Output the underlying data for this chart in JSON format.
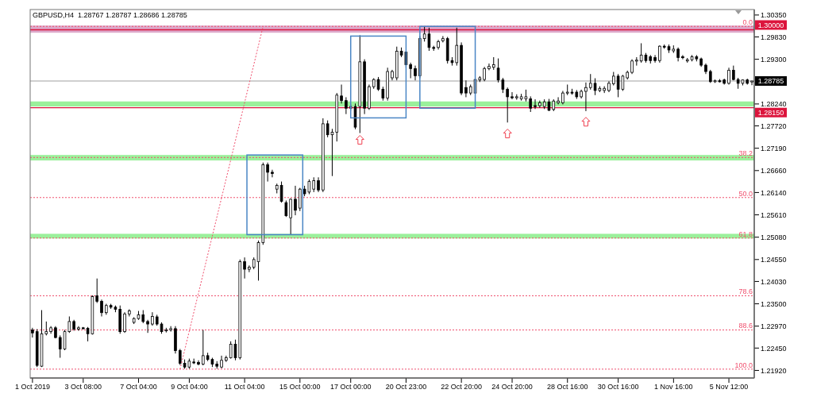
{
  "chart_data": {
    "type": "candlestick",
    "title": "GBPUSD,H4  1.28767 1.28787 1.28686 1.28785",
    "color": "#000000",
    "categories": [
      "1 Oct 2019",
      null,
      null,
      null,
      null,
      null,
      null,
      null,
      null,
      null,
      null,
      "3 Oct 08:00",
      null,
      null,
      null,
      null,
      null,
      null,
      null,
      null,
      null,
      null,
      null,
      "7 Oct 04:00",
      null,
      null,
      null,
      null,
      null,
      null,
      null,
      null,
      null,
      null,
      "9 Oct 04:00",
      null,
      null,
      null,
      null,
      null,
      null,
      null,
      null,
      null,
      null,
      null,
      "11 Oct 04:00",
      null,
      null,
      null,
      null,
      null,
      null,
      null,
      null,
      null,
      null,
      null,
      "15 Oct 00:00",
      null,
      null,
      null,
      null,
      null,
      null,
      null,
      null,
      null,
      null,
      "17 Oct 00:00",
      null,
      null,
      null,
      null,
      null,
      null,
      null,
      null,
      null,
      null,
      null,
      "20 Oct 23:00",
      null,
      null,
      null,
      null,
      null,
      null,
      null,
      null,
      null,
      null,
      null,
      "22 Oct 20:00",
      null,
      null,
      null,
      null,
      null,
      null,
      null,
      null,
      null,
      null,
      "24 Oct 20:00",
      null,
      null,
      null,
      null,
      null,
      null,
      null,
      null,
      null,
      null,
      null,
      "28 Oct 16:00",
      null,
      null,
      null,
      null,
      null,
      null,
      null,
      null,
      null,
      null,
      "30 Oct 16:00",
      null,
      null,
      null,
      null,
      null,
      null,
      null,
      null,
      null,
      null,
      null,
      "1 Nov 16:00",
      null,
      null,
      null,
      null,
      null,
      null,
      null,
      null,
      null,
      null,
      null,
      "5 Nov 12:00",
      null,
      null,
      null,
      null,
      null
    ],
    "ohlc": [
      [
        1.2288,
        1.2293,
        1.227,
        1.2281
      ],
      [
        1.2284,
        1.229,
        1.22,
        1.2204
      ],
      [
        1.2202,
        1.2335,
        1.22,
        1.2279
      ],
      [
        1.2279,
        1.2308,
        1.2275,
        1.2284
      ],
      [
        1.2284,
        1.2297,
        1.2279,
        1.2293
      ],
      [
        1.2293,
        1.2297,
        1.2268,
        1.227
      ],
      [
        1.227,
        1.2275,
        1.2222,
        1.2243
      ],
      [
        1.2243,
        1.2288,
        1.224,
        1.2284
      ],
      [
        1.2284,
        1.232,
        1.2281,
        1.2308
      ],
      [
        1.2308,
        1.2312,
        1.2286,
        1.229
      ],
      [
        1.229,
        1.2297,
        1.2286,
        1.2293
      ],
      [
        1.2293,
        1.2295,
        1.229,
        1.2292
      ],
      [
        1.2292,
        1.2295,
        1.2261,
        1.2279
      ],
      [
        1.2279,
        1.237,
        1.2277,
        1.2367
      ],
      [
        1.2369,
        1.241,
        1.2352,
        1.2356
      ],
      [
        1.2356,
        1.236,
        1.232,
        1.2329
      ],
      [
        1.2329,
        1.235,
        1.2324,
        1.2346
      ],
      [
        1.2346,
        1.235,
        1.2338,
        1.2342
      ],
      [
        1.2342,
        1.2346,
        1.233,
        1.2337
      ],
      [
        1.2337,
        1.2346,
        1.2279,
        1.2284
      ],
      [
        1.2284,
        1.233,
        1.2281,
        1.2326
      ],
      [
        1.2326,
        1.2337,
        1.232,
        1.2333
      ],
      [
        1.2306,
        1.2318,
        1.2302,
        1.2315
      ],
      [
        1.2315,
        1.2333,
        1.2312,
        1.2324
      ],
      [
        1.2324,
        1.2335,
        1.2304,
        1.2308
      ],
      [
        1.2308,
        1.2312,
        1.2281,
        1.2302
      ],
      [
        1.2302,
        1.233,
        1.2298,
        1.232
      ],
      [
        1.2319,
        1.2324,
        1.2298,
        1.2302
      ],
      [
        1.2302,
        1.2306,
        1.2279,
        1.2284
      ],
      [
        1.2286,
        1.2293,
        1.2282,
        1.2288
      ],
      [
        1.2288,
        1.2297,
        1.2284,
        1.2291
      ],
      [
        1.2291,
        1.2297,
        1.2232,
        1.2239
      ],
      [
        1.2239,
        1.2243,
        1.2205,
        1.2209
      ],
      [
        1.2209,
        1.2218,
        1.2196,
        1.22
      ],
      [
        1.22,
        1.222,
        1.2196,
        1.2214
      ],
      [
        1.2212,
        1.222,
        1.2207,
        1.2211
      ],
      [
        1.2211,
        1.2216,
        1.2204,
        1.2207
      ],
      [
        1.2207,
        1.2288,
        1.2204,
        1.2227
      ],
      [
        1.2227,
        1.2234,
        1.2214,
        1.2218
      ],
      [
        1.2218,
        1.2222,
        1.22,
        1.2207
      ],
      [
        1.2207,
        1.2214,
        1.2196,
        1.2202
      ],
      [
        1.22,
        1.2227,
        1.2197,
        1.2216
      ],
      [
        1.2216,
        1.2227,
        1.2212,
        1.2222
      ],
      [
        1.2222,
        1.2261,
        1.222,
        1.2254
      ],
      [
        1.2254,
        1.2265,
        1.2216,
        1.2222
      ],
      [
        1.2222,
        1.2455,
        1.2218,
        1.245
      ],
      [
        1.245,
        1.246,
        1.241,
        1.2432
      ],
      [
        1.2432,
        1.2441,
        1.2425,
        1.2437
      ],
      [
        1.2437,
        1.246,
        1.2432,
        1.2455
      ],
      [
        1.245,
        1.25,
        1.2405,
        1.2495
      ],
      [
        1.2495,
        1.2685,
        1.249,
        1.268
      ],
      [
        1.268,
        1.2685,
        1.264,
        1.2662
      ],
      [
        1.2662,
        1.2668,
        1.265,
        1.2659
      ],
      [
        1.2622,
        1.2635,
        1.2612,
        1.2631
      ],
      [
        1.2631,
        1.264,
        1.259,
        1.2593
      ],
      [
        1.259,
        1.2595,
        1.2556,
        1.2559
      ],
      [
        1.2554,
        1.26,
        1.2515,
        1.2598
      ],
      [
        1.2598,
        1.263,
        1.256,
        1.2572
      ],
      [
        1.2577,
        1.2625,
        1.257,
        1.2622
      ],
      [
        1.2622,
        1.263,
        1.2605,
        1.2611
      ],
      [
        1.2615,
        1.2645,
        1.261,
        1.264
      ],
      [
        1.2622,
        1.265,
        1.2615,
        1.2642
      ],
      [
        1.2642,
        1.265,
        1.2615,
        1.262
      ],
      [
        1.262,
        1.279,
        1.2615,
        1.2777
      ],
      [
        1.2777,
        1.2785,
        1.2745,
        1.2751
      ],
      [
        1.2751,
        1.2765,
        1.2653,
        1.2757
      ],
      [
        1.2757,
        1.285,
        1.2735,
        1.2845
      ],
      [
        1.2843,
        1.287,
        1.2825,
        1.2832
      ],
      [
        1.2832,
        1.284,
        1.28,
        1.2814
      ],
      [
        1.2814,
        1.2823,
        1.2808,
        1.2818
      ],
      [
        1.2818,
        1.2825,
        1.2764,
        1.2769
      ],
      [
        1.2818,
        1.2987,
        1.2755,
        1.2924
      ],
      [
        1.2924,
        1.293,
        1.28,
        1.2814
      ],
      [
        1.2814,
        1.287,
        1.281,
        1.2865
      ],
      [
        1.2865,
        1.2885,
        1.286,
        1.2882
      ],
      [
        1.2882,
        1.2888,
        1.2855,
        1.2859
      ],
      [
        1.2859,
        1.2865,
        1.2832,
        1.2838
      ],
      [
        1.2838,
        1.291,
        1.2832,
        1.2901
      ],
      [
        1.2886,
        1.2905,
        1.288,
        1.2901
      ],
      [
        1.2886,
        1.296,
        1.288,
        1.2949
      ],
      [
        1.2949,
        1.2958,
        1.2935,
        1.294
      ],
      [
        1.2947,
        1.295,
        1.291,
        1.2917
      ],
      [
        1.2917,
        1.2922,
        1.2885,
        1.2908
      ],
      [
        1.2908,
        1.2915,
        1.288,
        1.2891
      ],
      [
        1.2891,
        1.2985,
        1.2885,
        1.2979
      ],
      [
        1.2979,
        1.3008,
        1.2972,
        1.299
      ],
      [
        1.299,
        1.3005,
        1.295,
        1.2958
      ],
      [
        1.2958,
        1.2962,
        1.295,
        1.2956
      ],
      [
        1.2958,
        1.2976,
        1.2953,
        1.2972
      ],
      [
        1.2974,
        1.2985,
        1.297,
        1.2979
      ],
      [
        1.2979,
        1.2983,
        1.292,
        1.2927
      ],
      [
        1.2927,
        1.2935,
        1.2915,
        1.2922
      ],
      [
        1.2922,
        1.3005,
        1.2915,
        1.2963
      ],
      [
        1.2963,
        1.297,
        1.2845,
        1.285
      ],
      [
        1.2863,
        1.288,
        1.284,
        1.285
      ],
      [
        1.285,
        1.287,
        1.2845,
        1.2865
      ],
      [
        1.285,
        1.2888,
        1.2845,
        1.2882
      ],
      [
        1.2881,
        1.289,
        1.2876,
        1.2886
      ],
      [
        1.2882,
        1.2912,
        1.2878,
        1.2908
      ],
      [
        1.2908,
        1.292,
        1.2904,
        1.2913
      ],
      [
        1.2911,
        1.2935,
        1.2905,
        1.2917
      ],
      [
        1.2909,
        1.2932,
        1.2875,
        1.2881
      ],
      [
        1.2881,
        1.2886,
        1.285,
        1.2859
      ],
      [
        1.2859,
        1.2863,
        1.278,
        1.2841
      ],
      [
        1.2841,
        1.2852,
        1.2835,
        1.2839
      ],
      [
        1.2839,
        1.2847,
        1.2834,
        1.2841
      ],
      [
        1.2836,
        1.2848,
        1.2832,
        1.2841
      ],
      [
        1.2836,
        1.2858,
        1.283,
        1.2841
      ],
      [
        1.2836,
        1.2842,
        1.2805,
        1.2814
      ],
      [
        1.282,
        1.2835,
        1.2812,
        1.2818
      ],
      [
        1.282,
        1.2832,
        1.2815,
        1.2827
      ],
      [
        1.2818,
        1.2835,
        1.2812,
        1.2829
      ],
      [
        1.2829,
        1.2836,
        1.2807,
        1.2809
      ],
      [
        1.2811,
        1.2835,
        1.2807,
        1.2831
      ],
      [
        1.2827,
        1.284,
        1.2823,
        1.2831
      ],
      [
        1.2827,
        1.2855,
        1.2823,
        1.285
      ],
      [
        1.285,
        1.287,
        1.2845,
        1.2852
      ],
      [
        1.2852,
        1.286,
        1.2846,
        1.2851
      ],
      [
        1.2852,
        1.2857,
        1.2836,
        1.2841
      ],
      [
        1.2841,
        1.2858,
        1.2837,
        1.2854
      ],
      [
        1.2854,
        1.2875,
        1.2807,
        1.2863
      ],
      [
        1.2863,
        1.2895,
        1.2858,
        1.2873
      ],
      [
        1.2873,
        1.2885,
        1.2845,
        1.2856
      ],
      [
        1.2856,
        1.2866,
        1.2852,
        1.2861
      ],
      [
        1.2856,
        1.2866,
        1.285,
        1.2861
      ],
      [
        1.2856,
        1.2878,
        1.2852,
        1.2873
      ],
      [
        1.2872,
        1.29,
        1.2868,
        1.289
      ],
      [
        1.289,
        1.2895,
        1.284,
        1.2859
      ],
      [
        1.2859,
        1.2893,
        1.2855,
        1.289
      ],
      [
        1.2886,
        1.2903,
        1.2882,
        1.2899
      ],
      [
        1.2899,
        1.293,
        1.2895,
        1.2926
      ],
      [
        1.2926,
        1.2935,
        1.2915,
        1.2928
      ],
      [
        1.2926,
        1.2968,
        1.2922,
        1.294
      ],
      [
        1.294,
        1.2945,
        1.2922,
        1.2927
      ],
      [
        1.2936,
        1.294,
        1.292,
        1.2927
      ],
      [
        1.2934,
        1.294,
        1.2922,
        1.2927
      ],
      [
        1.2927,
        1.2963,
        1.2922,
        1.2961
      ],
      [
        1.2961,
        1.2965,
        1.2955,
        1.296
      ],
      [
        1.296,
        1.2965,
        1.2945,
        1.2952
      ],
      [
        1.295,
        1.2963,
        1.2945,
        1.2954
      ],
      [
        1.2954,
        1.2958,
        1.2925,
        1.2934
      ],
      [
        1.2936,
        1.294,
        1.293,
        1.2934
      ],
      [
        1.2926,
        1.2933,
        1.2922,
        1.2929
      ],
      [
        1.2929,
        1.294,
        1.2925,
        1.2936
      ],
      [
        1.2936,
        1.294,
        1.2925,
        1.2931
      ],
      [
        1.2931,
        1.2934,
        1.2912,
        1.2916
      ],
      [
        1.2916,
        1.292,
        1.2895,
        1.2901
      ],
      [
        1.2901,
        1.2905,
        1.2874,
        1.2877
      ],
      [
        1.2877,
        1.2882,
        1.2874,
        1.2879
      ],
      [
        1.2879,
        1.2883,
        1.2875,
        1.2878
      ],
      [
        1.2881,
        1.2884,
        1.287,
        1.2873
      ],
      [
        1.2873,
        1.291,
        1.287,
        1.2904
      ],
      [
        1.2904,
        1.2915,
        1.288,
        1.2882
      ],
      [
        1.2882,
        1.2886,
        1.286,
        1.2873
      ],
      [
        1.2873,
        1.2882,
        1.2868,
        1.2881
      ],
      [
        1.2881,
        1.2884,
        1.287,
        1.2873
      ],
      [
        1.28767,
        1.28787,
        1.28686,
        1.28785
      ]
    ],
    "ylim": [
      1.2174,
      1.3048
    ],
    "yticks": [
      {
        "value": 1.3035,
        "label": "1.30350"
      },
      {
        "value": 1.2983,
        "label": "1.29830"
      },
      {
        "value": 1.293,
        "label": "1.29300"
      },
      {
        "value": 1.2824,
        "label": "1.28240"
      },
      {
        "value": 1.2772,
        "label": "1.27720"
      },
      {
        "value": 1.2719,
        "label": "1.27190"
      },
      {
        "value": 1.2666,
        "label": "1.26660"
      },
      {
        "value": 1.2614,
        "label": "1.26140"
      },
      {
        "value": 1.2561,
        "label": "1.25610"
      },
      {
        "value": 1.2508,
        "label": "1.25080"
      },
      {
        "value": 1.2455,
        "label": "1.24550"
      },
      {
        "value": 1.2403,
        "label": "1.24030"
      },
      {
        "value": 1.235,
        "label": "1.23500"
      },
      {
        "value": 1.2297,
        "label": "1.22970"
      },
      {
        "value": 1.2245,
        "label": "1.22450"
      },
      {
        "value": 1.2192,
        "label": "1.21920"
      }
    ],
    "series": [
      {
        "type": "line",
        "color": "#f0506e",
        "line_style": "dotted",
        "values": [
          null,
          null,
          null,
          null,
          null,
          null,
          null,
          null,
          null,
          null,
          null,
          null,
          null,
          null,
          null,
          null,
          null,
          null,
          null,
          null,
          null,
          null,
          null,
          null,
          null,
          null,
          null,
          null,
          null,
          null,
          null,
          null,
          1.2195,
          null,
          null,
          null,
          null,
          null,
          null,
          null,
          null,
          null,
          null,
          null,
          null,
          null,
          null,
          null,
          null,
          null,
          1.3008,
          null,
          null,
          null,
          null,
          null,
          null,
          null,
          null,
          null,
          null,
          null,
          null,
          null,
          null,
          null,
          null,
          null,
          null,
          null,
          null,
          null,
          null,
          null,
          null,
          null,
          null,
          null,
          null,
          null,
          null,
          null,
          null,
          null,
          null,
          null,
          null,
          null,
          null,
          null,
          null,
          null,
          null,
          null,
          null,
          null,
          null,
          null,
          null,
          null,
          null,
          null,
          null,
          null,
          null,
          null,
          null,
          null,
          null,
          null,
          null,
          null,
          null,
          null,
          null,
          null,
          null,
          null,
          null,
          null,
          null,
          null,
          null,
          null,
          null,
          null,
          null,
          null,
          null,
          null,
          null,
          null,
          null,
          null,
          null,
          null,
          null,
          null,
          null,
          null,
          null,
          null,
          null,
          null,
          null,
          null,
          null,
          null,
          null,
          null,
          null,
          null,
          null,
          null,
          null,
          null,
          null
        ]
      }
    ],
    "annotations": [
      {
        "text": "0.0",
        "y": 1.3008
      },
      {
        "text": "38.2",
        "y": 1.2697
      },
      {
        "text": "50.0",
        "y": 1.2602
      },
      {
        "text": "61.8",
        "y": 1.2506
      },
      {
        "text": "78.6",
        "y": 1.2369
      },
      {
        "text": "88.6",
        "y": 1.2288
      },
      {
        "text": "100.0",
        "y": 1.2195
      }
    ],
    "bands": [
      {
        "axis": "y",
        "from": 1.2993,
        "to": 1.301,
        "color": "#d8a0c4"
      },
      {
        "axis": "y",
        "from": 1.2818,
        "to": 1.283,
        "color": "#90ee90"
      },
      {
        "axis": "y",
        "from": 1.269,
        "to": 1.2703,
        "color": "#90ee90"
      },
      {
        "axis": "y",
        "from": 1.2505,
        "to": 1.2516,
        "color": "#90ee90"
      }
    ],
    "ref_lines": [
      {
        "axis": "y",
        "value": 1.3,
        "label": "1.30000",
        "color": "#dc143c",
        "line_style": "solid"
      },
      {
        "axis": "y",
        "value": 1.2815,
        "label": "1.28150",
        "color": "#dc143c",
        "line_style": "solid"
      },
      {
        "axis": "y",
        "value": 1.28785,
        "label": "1.28785",
        "color": "#000000",
        "line_style": "solid"
      },
      {
        "axis": "y",
        "value": 1.3008,
        "color": "#f0506e",
        "line_style": "dotted"
      },
      {
        "axis": "y",
        "value": 1.2697,
        "color": "#f0506e",
        "line_style": "dotted"
      },
      {
        "axis": "y",
        "value": 1.2602,
        "color": "#f0506e",
        "line_style": "dotted"
      },
      {
        "axis": "y",
        "value": 1.2506,
        "color": "#f0506e",
        "line_style": "dotted"
      },
      {
        "axis": "y",
        "value": 1.2369,
        "color": "#f0506e",
        "line_style": "dotted"
      },
      {
        "axis": "y",
        "value": 1.2288,
        "color": "#f0506e",
        "line_style": "dotted"
      },
      {
        "axis": "y",
        "value": 1.2195,
        "color": "#f0506e",
        "line_style": "dotted"
      }
    ]
  }
}
